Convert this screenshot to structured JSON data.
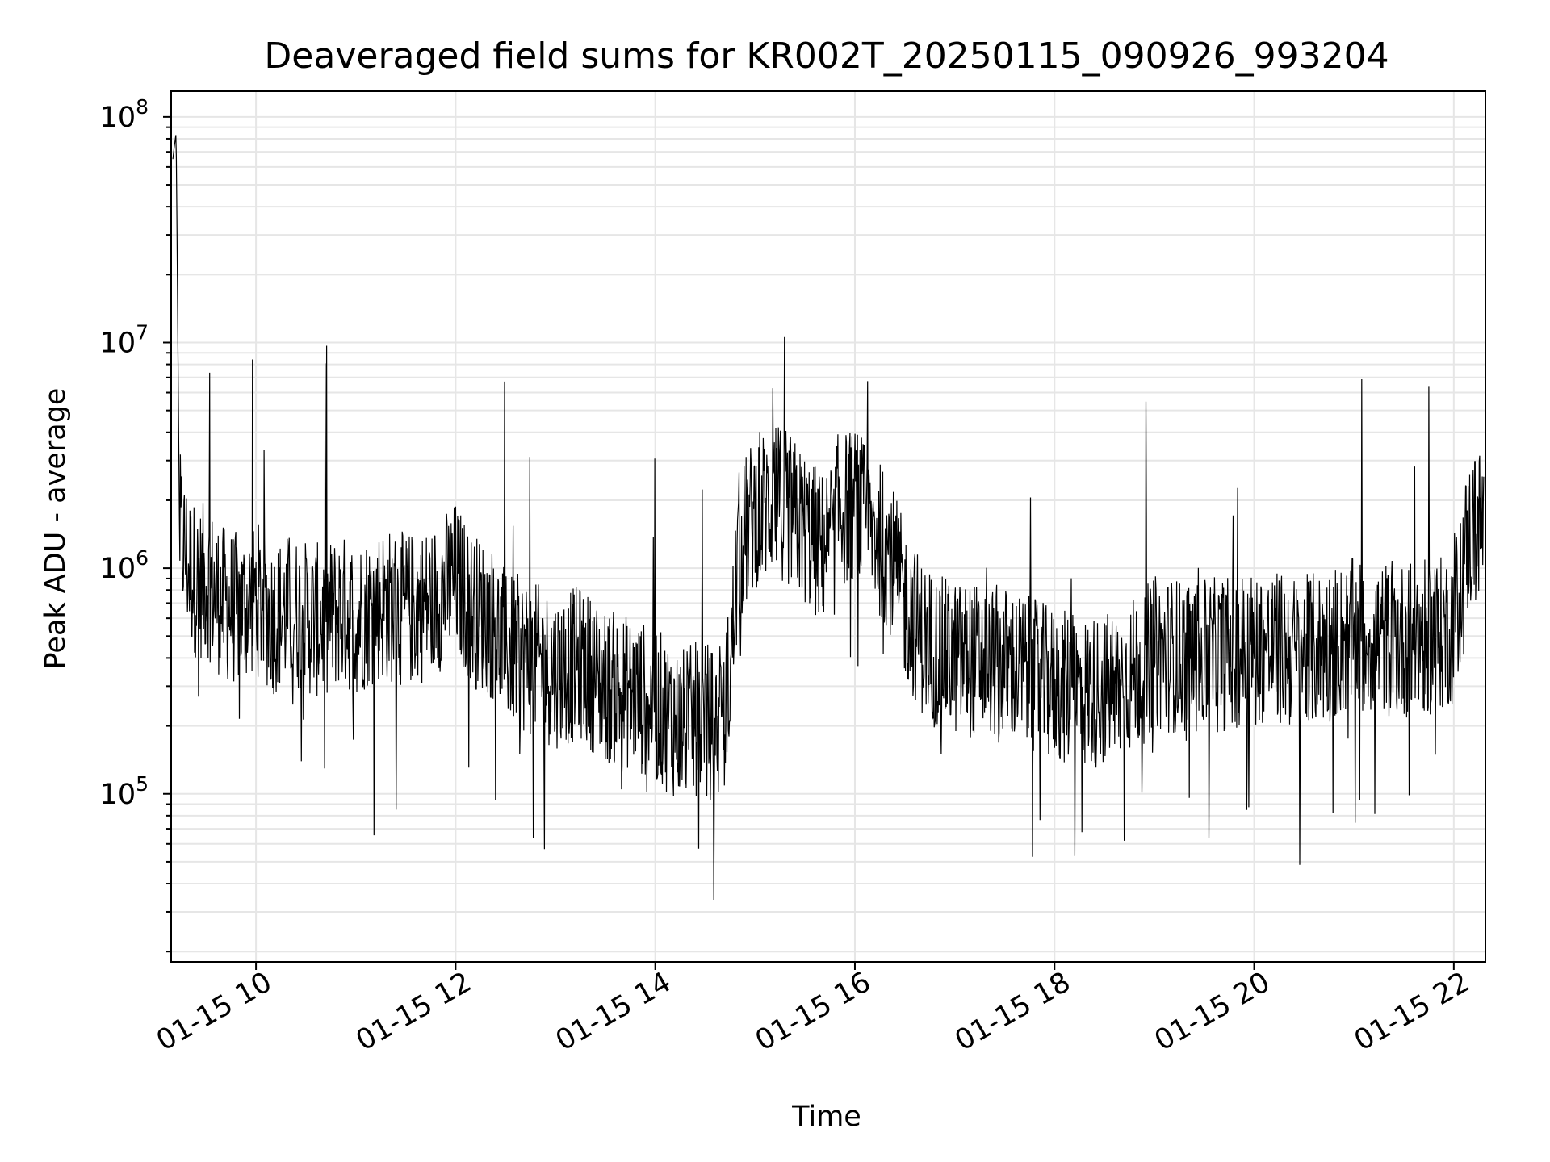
{
  "chart_data": {
    "type": "line",
    "title": "Deaveraged field sums for KR002T_20250115_090926_993204",
    "xlabel": "Time",
    "ylabel": "Peak ADU - average",
    "yscale": "log",
    "xlim": [
      "2025-01-15 09:09",
      "2025-01-15 22:19"
    ],
    "ylim": [
      18000,
      130000000
    ],
    "xticks": [
      {
        "t": "2025-01-15 10:00",
        "label": "01-15 10"
      },
      {
        "t": "2025-01-15 12:00",
        "label": "01-15 12"
      },
      {
        "t": "2025-01-15 14:00",
        "label": "01-15 14"
      },
      {
        "t": "2025-01-15 16:00",
        "label": "01-15 16"
      },
      {
        "t": "2025-01-15 18:00",
        "label": "01-15 18"
      },
      {
        "t": "2025-01-15 20:00",
        "label": "01-15 20"
      },
      {
        "t": "2025-01-15 22:00",
        "label": "01-15 22"
      }
    ],
    "yticks": [
      {
        "value": 100000,
        "base": "10",
        "exp": "5"
      },
      {
        "value": 1000000,
        "base": "10",
        "exp": "6"
      },
      {
        "value": 10000000,
        "base": "10",
        "exp": "7"
      },
      {
        "value": 100000000,
        "base": "10",
        "exp": "8"
      }
    ],
    "grid": true,
    "line_color": "#000000",
    "grid_color": "#e6e6e6",
    "series": [
      {
        "x": [
          "2025-01-15 09:10",
          "2025-01-15 09:11",
          "2025-01-15 09:12",
          "2025-01-15 09:14",
          "2025-01-15 09:16",
          "2025-01-15 09:20",
          "2025-01-15 09:25",
          "2025-01-15 09:30",
          "2025-01-15 09:40",
          "2025-01-15 09:50",
          "2025-01-15 10:00",
          "2025-01-15 10:10",
          "2025-01-15 10:20",
          "2025-01-15 10:30",
          "2025-01-15 10:40",
          "2025-01-15 10:50",
          "2025-01-15 11:00",
          "2025-01-15 11:15",
          "2025-01-15 11:30",
          "2025-01-15 11:45",
          "2025-01-15 12:00",
          "2025-01-15 12:10",
          "2025-01-15 12:20",
          "2025-01-15 12:30",
          "2025-01-15 12:45",
          "2025-01-15 13:00",
          "2025-01-15 13:15",
          "2025-01-15 13:30",
          "2025-01-15 13:45",
          "2025-01-15 14:00",
          "2025-01-15 14:15",
          "2025-01-15 14:30",
          "2025-01-15 14:40",
          "2025-01-15 14:45",
          "2025-01-15 14:50",
          "2025-01-15 15:00",
          "2025-01-15 15:15",
          "2025-01-15 15:30",
          "2025-01-15 15:40",
          "2025-01-15 15:50",
          "2025-01-15 16:00",
          "2025-01-15 16:10",
          "2025-01-15 16:20",
          "2025-01-15 16:30",
          "2025-01-15 16:40",
          "2025-01-15 16:50",
          "2025-01-15 17:00",
          "2025-01-15 17:30",
          "2025-01-15 18:00",
          "2025-01-15 18:20",
          "2025-01-15 18:40",
          "2025-01-15 19:00",
          "2025-01-15 19:30",
          "2025-01-15 20:00",
          "2025-01-15 20:30",
          "2025-01-15 21:00",
          "2025-01-15 21:30",
          "2025-01-15 21:50",
          "2025-01-15 22:00",
          "2025-01-15 22:08",
          "2025-01-15 22:12",
          "2025-01-15 22:18"
        ],
        "y": [
          65000000,
          75000000,
          85000000,
          1500000,
          1300000,
          1000000,
          850000,
          900000,
          700000,
          650000,
          750000,
          600000,
          650000,
          600000,
          580000,
          650000,
          600000,
          700000,
          650000,
          700000,
          900000,
          650000,
          600000,
          450000,
          400000,
          350000,
          380000,
          300000,
          280000,
          250000,
          200000,
          220000,
          180000,
          350000,
          1200000,
          1800000,
          2000000,
          1500000,
          1200000,
          1800000,
          1900000,
          1500000,
          1200000,
          700000,
          500000,
          420000,
          400000,
          380000,
          300000,
          280000,
          300000,
          420000,
          400000,
          450000,
          420000,
          500000,
          480000,
          500000,
          550000,
          1300000,
          1500000,
          1600000
        ]
      }
    ]
  }
}
